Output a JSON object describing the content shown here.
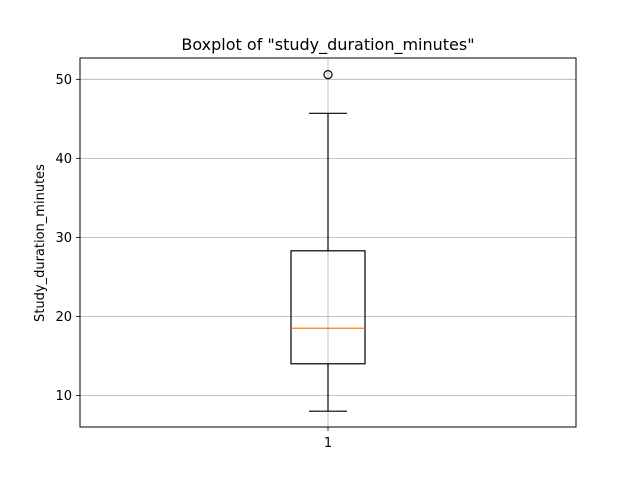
{
  "chart_data": {
    "type": "boxplot",
    "title": "Boxplot of \"study_duration_minutes\"",
    "xlabel": "",
    "ylabel": "Study_duration_minutes",
    "ylim": [
      6,
      52.7
    ],
    "yticks": [
      10,
      20,
      30,
      40,
      50
    ],
    "categories": [
      "1"
    ],
    "grid": true,
    "boxes": [
      {
        "category": "1",
        "whisker_low": 8,
        "q1": 14,
        "median": 18.5,
        "q3": 28.3,
        "whisker_high": 45.7,
        "outliers": [
          50.6
        ]
      }
    ],
    "colors": {
      "box": "#000000",
      "median": "#ff7f0e",
      "grid": "#b0b0b0"
    }
  }
}
